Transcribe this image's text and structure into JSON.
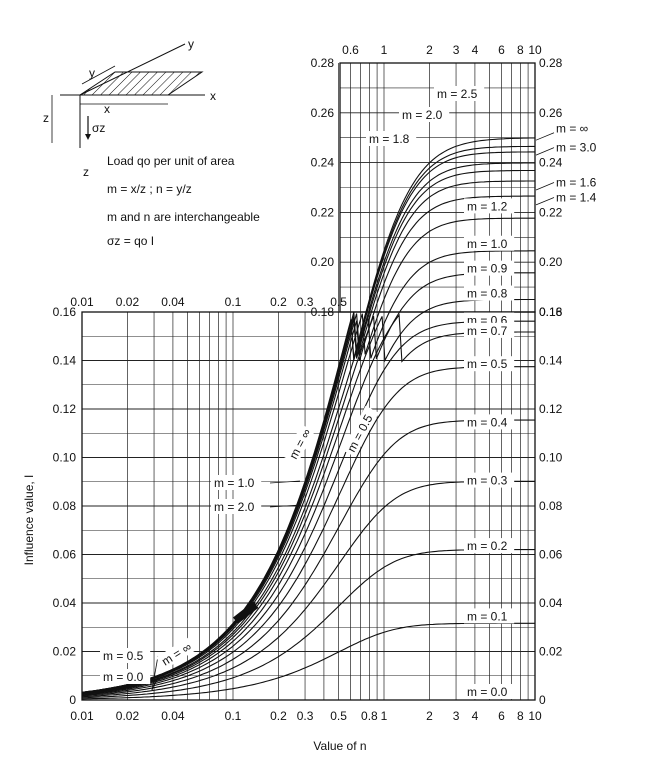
{
  "chart_data": {
    "type": "line",
    "xlabel": "Value of n",
    "ylabel": "Influence value, I",
    "x_scale": "log",
    "grid": true,
    "lower_panel": {
      "xlim": [
        0.01,
        10
      ],
      "ylim": [
        0,
        0.16
      ],
      "x_ticks_bottom": [
        "0.01",
        "0.02",
        "0.04",
        "0.1",
        "0.2",
        "0.3",
        "0.5",
        "0.8",
        "1",
        "2",
        "3",
        "4",
        "6",
        "8",
        "10"
      ],
      "x_ticks_top": [
        "0.01",
        "0.02",
        "0.04",
        "0.1",
        "0.2",
        "0.3",
        "0.5"
      ],
      "y_ticks_left": [
        "0",
        "0.02",
        "0.04",
        "0.06",
        "0.08",
        "0.10",
        "0.12",
        "0.14",
        "0.16"
      ],
      "y_ticks_right": [
        "0",
        "0.02",
        "0.04",
        "0.06",
        "0.08",
        "0.10",
        "0.12",
        "0.14",
        "0.16",
        "0.18",
        "0.20",
        "0.22",
        "0.24",
        "0.26",
        "0.28"
      ],
      "series": [
        {
          "name": "m = 0.0",
          "m": 0.0
        },
        {
          "name": "m = 0.1",
          "m": 0.1
        },
        {
          "name": "m = 0.2",
          "m": 0.2
        },
        {
          "name": "m = 0.3",
          "m": 0.3
        },
        {
          "name": "m = 0.4",
          "m": 0.4
        },
        {
          "name": "m = 0.5",
          "m": 0.5
        },
        {
          "name": "m = 0.6",
          "m": 0.6
        },
        {
          "name": "m = 0.7",
          "m": 0.7
        },
        {
          "name": "m = 0.8",
          "m": 0.8
        },
        {
          "name": "m = 0.9",
          "m": 0.9
        },
        {
          "name": "m = 1.0",
          "m": 1.0
        },
        {
          "name": "m = 1.2",
          "m": 1.2
        },
        {
          "name": "m = 1.4",
          "m": 1.4
        },
        {
          "name": "m = 1.6",
          "m": 1.6
        },
        {
          "name": "m = 1.8",
          "m": 1.8
        },
        {
          "name": "m = 2.0",
          "m": 2.0
        },
        {
          "name": "m = 2.5",
          "m": 2.5
        },
        {
          "name": "m = 3.0",
          "m": 3.0
        },
        {
          "name": "m = ∞",
          "m": 1000
        }
      ]
    },
    "upper_panel": {
      "xlim": [
        0.5,
        10
      ],
      "ylim": [
        0.18,
        0.28
      ],
      "x_ticks_top": [
        "0.6",
        "1",
        "2",
        "3",
        "4",
        "6",
        "8",
        "10"
      ],
      "y_ticks_left": [
        "0.18",
        "0.20",
        "0.22",
        "0.24",
        "0.26",
        "0.28"
      ],
      "y_ticks_right": [
        "0.18",
        "0.20",
        "0.22",
        "0.24",
        "0.26",
        "0.28"
      ]
    },
    "curve_labels": {
      "right": [
        "m = 0.0",
        "m = 0.1",
        "m = 0.2",
        "m = 0.3",
        "m = 0.4",
        "m = 0.5",
        "m = 0.6",
        "m = 0.7",
        "m = 0.8",
        "m = 0.9",
        "m = 1.0",
        "m = 1.2"
      ],
      "right_arrows": [
        "m = ∞",
        "m = 3.0",
        "m = 1.6",
        "m = 1.4"
      ],
      "upper_left": [
        "m = 2.5",
        "m = 2.0",
        "m = 1.8"
      ],
      "mid_left": [
        "m = 1.0",
        "m = 2.0"
      ],
      "lower_left": [
        "m = 0.5",
        "m = 0.0"
      ],
      "rotated": [
        "m = ∞",
        "m = 0.5",
        "m = ∞"
      ]
    },
    "legend": {
      "axis_y": "y",
      "axis_x": "x",
      "axis_z": "z",
      "dim_y": "y",
      "dim_x": "x",
      "dim_z": "z",
      "sigma": "σz",
      "z_arrow": "z",
      "line1": "Load qo per unit of area",
      "line2": "m = x/z ; n = y/z",
      "line3": "m and n are interchangeable",
      "line4": "σz = qo I"
    }
  }
}
